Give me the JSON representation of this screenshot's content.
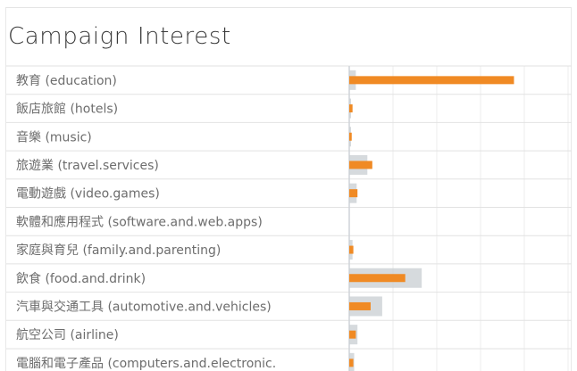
{
  "colors": {
    "bar_primary": "#f08a24",
    "bar_secondary": "#c8cdd2",
    "row_line": "#e2e2e2",
    "grid_line": "#ececec",
    "axis_line": "#cfd4d8",
    "label_text": "#6d6d6d",
    "title_text": "#3a3a3a"
  },
  "chart_data": {
    "type": "bar",
    "orientation": "horizontal",
    "title": "Campaign Interest",
    "categories": [
      "教育 (education)",
      "飯店旅館 (hotels)",
      "音樂 (music)",
      "旅遊業 (travel.services)",
      "電動遊戲 (video.games)",
      "軟體和應用程式 (software.and.web.apps)",
      "家庭與育兒 (family.and.parenting)",
      "飲食 (food.and.drink)",
      "汽車與交通工具 (automotive.and.vehicles)",
      "航空公司 (airline)",
      "電腦和電子產品 (computers.and.electronic."
    ],
    "series": [
      {
        "values": [
          1.0,
          0.02,
          0.015,
          0.14,
          0.05,
          0.0,
          0.025,
          0.34,
          0.13,
          0.04,
          0.025
        ]
      },
      {
        "values": [
          0.04,
          0.01,
          0.005,
          0.11,
          0.045,
          0.0,
          0.02,
          0.44,
          0.2,
          0.05,
          0.03
        ]
      }
    ],
    "xlim": [
      0,
      1.35
    ],
    "grid": true,
    "legend": "none"
  }
}
